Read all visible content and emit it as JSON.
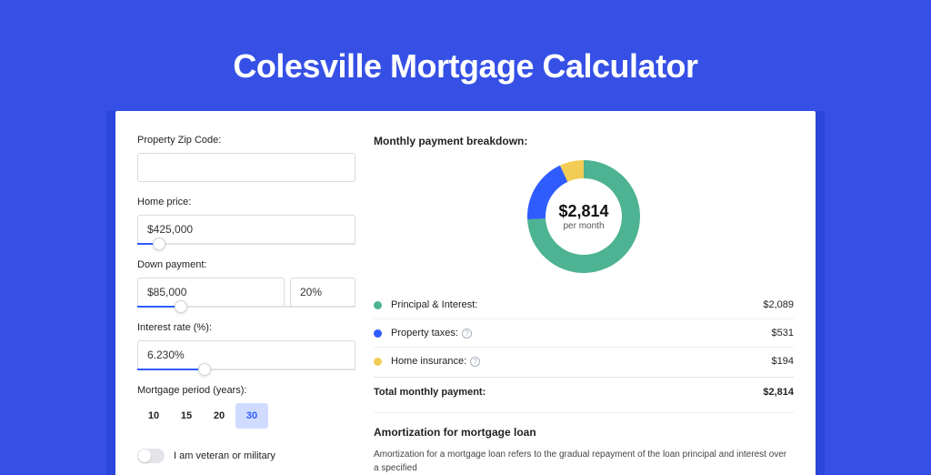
{
  "page": {
    "title": "Colesville Mortgage Calculator",
    "background_color": "#3650e6",
    "card_shadow_color": "#2b46db",
    "card_background": "#ffffff"
  },
  "form": {
    "zip": {
      "label": "Property Zip Code:",
      "value": ""
    },
    "home_price": {
      "label": "Home price:",
      "value": "$425,000",
      "slider_pct": 10
    },
    "down_payment": {
      "label": "Down payment:",
      "value": "$85,000",
      "pct_value": "20%",
      "slider_pct": 20
    },
    "interest_rate": {
      "label": "Interest rate (%):",
      "value": "6.230%",
      "slider_pct": 31
    },
    "period": {
      "label": "Mortgage period (years):",
      "options": [
        "10",
        "15",
        "20",
        "30"
      ],
      "selected": "30"
    },
    "veteran": {
      "label": "I am veteran or military",
      "checked": false
    }
  },
  "breakdown": {
    "title": "Monthly payment breakdown:",
    "donut": {
      "amount": "$2,814",
      "sub": "per month",
      "slices": [
        {
          "key": "principal_interest",
          "pct": 74.2,
          "color": "#4db392"
        },
        {
          "key": "property_tax",
          "pct": 18.9,
          "color": "#2f5cff"
        },
        {
          "key": "home_insurance",
          "pct": 6.9,
          "color": "#f3cc56"
        }
      ],
      "inner_radius": 42,
      "outer_radius": 62
    },
    "rows": [
      {
        "dot_color": "#4db392",
        "label": "Principal & Interest:",
        "info": false,
        "value": "$2,089"
      },
      {
        "dot_color": "#2f5cff",
        "label": "Property taxes:",
        "info": true,
        "value": "$531"
      },
      {
        "dot_color": "#f3cc56",
        "label": "Home insurance:",
        "info": true,
        "value": "$194"
      }
    ],
    "total": {
      "label": "Total monthly payment:",
      "value": "$2,814"
    }
  },
  "amortization": {
    "title": "Amortization for mortgage loan",
    "text": "Amortization for a mortgage loan refers to the gradual repayment of the loan principal and interest over a specified"
  }
}
